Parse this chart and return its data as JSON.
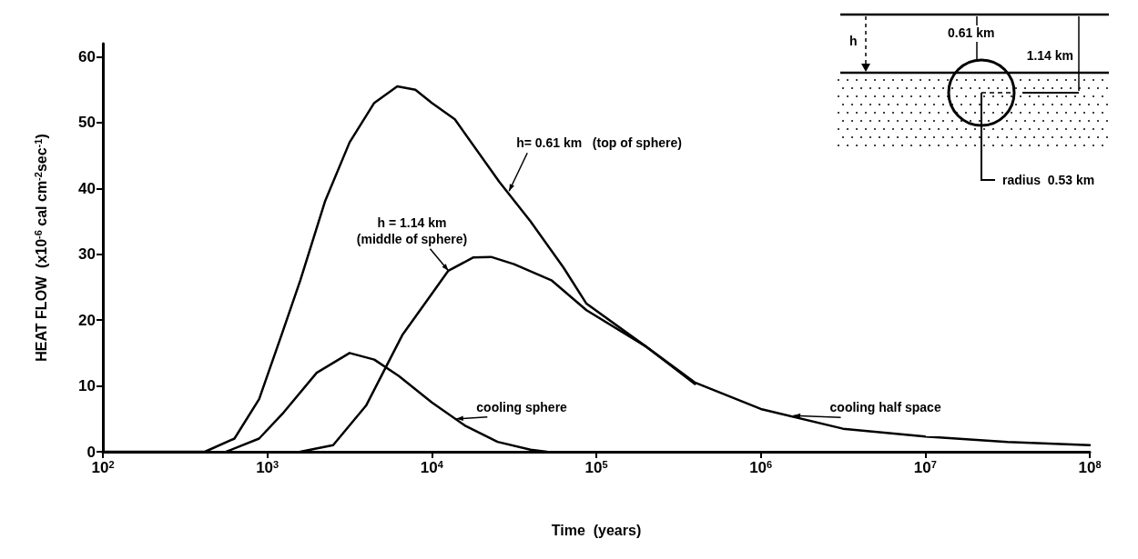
{
  "chart_data": {
    "type": "line",
    "xlabel": "Time  (years)",
    "ylabel": "HEAT FLOW  (x10$^{-6}$ cal cm$^{-2}$sec$^{-1}$)",
    "log": "x",
    "xlim": [
      100,
      100000000
    ],
    "xticks": [
      {
        "value": 100,
        "label": "10$^{2}$"
      },
      {
        "value": 1000,
        "label": "10$^{3}$"
      },
      {
        "value": 10000,
        "label": "10$^{4}$"
      },
      {
        "value": 100000,
        "label": "10$^{5}$"
      },
      {
        "value": 1000000,
        "label": "10$^{6}$"
      },
      {
        "value": 10000000,
        "label": "10$^{7}$"
      },
      {
        "value": 100000000,
        "label": "10$^{8}$"
      }
    ],
    "ylim": [
      0,
      62
    ],
    "yticks": [
      0,
      10,
      20,
      30,
      40,
      50,
      60
    ],
    "grid": false,
    "marker": "none",
    "line_style": "solid",
    "series": [
      {
        "color": "#000000",
        "x": [
          100,
          417,
          631,
          891,
          1230,
          1585,
          2239,
          3162,
          4467,
          6166,
          7943,
          10000,
          13800,
          25700,
          39800,
          63100,
          87100,
          200000,
          398000,
          1000000,
          3160000,
          10000000,
          31600000,
          100000000
        ],
        "values": [
          0,
          0,
          2,
          8,
          18,
          26,
          38,
          47,
          53,
          55.5,
          55,
          53,
          50.5,
          41,
          35,
          28,
          22.5,
          16,
          10.5,
          6.5,
          3.5,
          2.3,
          1.5,
          1
        ]
      },
      {
        "color": "#000000",
        "x": [
          1585,
          2512,
          3981,
          6607,
          10000,
          12600,
          17800,
          22900,
          31600,
          53700,
          87100,
          200000,
          398000
        ],
        "values": [
          0,
          1,
          7,
          17.7,
          24,
          27.5,
          29.5,
          29.6,
          28.5,
          26,
          21.5,
          16,
          10.3
        ]
      },
      {
        "color": "#000000",
        "x": [
          562,
          891,
          1259,
          1995,
          3162,
          4467,
          6310,
          10000,
          15850,
          25100,
          39800,
          50100
        ],
        "values": [
          0,
          2,
          6,
          12,
          15,
          14,
          11.5,
          7.5,
          4,
          1.5,
          0.3,
          0
        ]
      }
    ],
    "annotations": [
      {
        "text": "h= 0.61 km   (top of sphere)",
        "x": 29500,
        "y": 39.6
      },
      {
        "text": "h = 1.14 km\n(middle of sphere)",
        "x": 12600,
        "y": 27.5
      },
      {
        "text": "cooling sphere",
        "x": 14100,
        "y": 5
      },
      {
        "text": "cooling half space",
        "x": 1580000,
        "y": 5.5
      },
      "h",
      "0.61 km",
      "1.14 km",
      "radius  0.53 km"
    ]
  }
}
